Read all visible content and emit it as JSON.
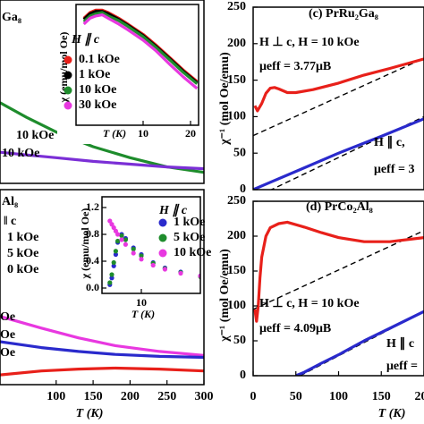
{
  "chart_data": [
    {
      "type": "line",
      "xlim": [
        24,
        300
      ],
      "ylim": [
        0,
        1
      ],
      "annotations": [
        "Ga₈",
        "10 kOe",
        "10 kOe"
      ],
      "series": [
        {
          "color": "#1e8c2c",
          "x": [
            24,
            60,
            100,
            150,
            200,
            250,
            300
          ],
          "values": [
            0.44,
            0.36,
            0.28,
            0.2,
            0.14,
            0.09,
            0.06
          ]
        },
        {
          "color": "#7b2fd6",
          "x": [
            24,
            60,
            100,
            150,
            200,
            250,
            300
          ],
          "values": [
            0.17,
            0.155,
            0.14,
            0.12,
            0.105,
            0.09,
            0.08
          ]
        }
      ]
    },
    {
      "type": "line",
      "xlog": true,
      "xlim": [
        3.75,
        22.5
      ],
      "xticks": [
        10,
        20
      ],
      "ylim": [
        0,
        1.05
      ],
      "xlabel": "T (K)",
      "ylabel": "χ (emu/mol Oe)",
      "legend_title": "H ∥ c",
      "series": [
        {
          "name": "0.1 kOe",
          "color": "#e8201a",
          "x": [
            4.2,
            4.6,
            5,
            5.5,
            6,
            7,
            8,
            10,
            12,
            15,
            18,
            22
          ],
          "values": [
            0.93,
            0.98,
            1.0,
            1.0,
            0.98,
            0.93,
            0.88,
            0.79,
            0.7,
            0.58,
            0.48,
            0.38
          ]
        },
        {
          "name": "1 kOe",
          "color": "#000000",
          "x": [
            4.2,
            4.6,
            5,
            5.5,
            6,
            7,
            8,
            10,
            12,
            15,
            18,
            22
          ],
          "values": [
            0.92,
            0.97,
            0.99,
            0.99,
            0.97,
            0.92,
            0.87,
            0.78,
            0.69,
            0.57,
            0.47,
            0.37
          ]
        },
        {
          "name": "10 kOe",
          "color": "#1e8c2c",
          "x": [
            4.2,
            4.6,
            5,
            5.5,
            6,
            7,
            8,
            10,
            12,
            15,
            18,
            22
          ],
          "values": [
            0.9,
            0.95,
            0.97,
            0.98,
            0.95,
            0.91,
            0.86,
            0.77,
            0.68,
            0.56,
            0.46,
            0.36
          ]
        },
        {
          "name": "30 kOe",
          "color": "#e838e0",
          "x": [
            4.2,
            4.6,
            5,
            5.5,
            6,
            7,
            8,
            10,
            12,
            15,
            18,
            22
          ],
          "values": [
            0.88,
            0.93,
            0.95,
            0.96,
            0.93,
            0.88,
            0.83,
            0.74,
            0.65,
            0.52,
            0.42,
            0.32
          ]
        }
      ]
    },
    {
      "type": "line",
      "xlim": [
        24,
        300
      ],
      "xticks": [
        100,
        150,
        200,
        250,
        300
      ],
      "ylim": [
        0,
        1
      ],
      "xlabel": "T (K)",
      "annotations": [
        "Al₈",
        "‖ c",
        "1 kOe",
        "5 kOe",
        "0 kOe",
        "Oe",
        "Oe",
        "Oe"
      ],
      "series": [
        {
          "color": "#e8201a",
          "x": [
            24,
            80,
            130,
            180,
            240,
            300
          ],
          "values": [
            0.05,
            0.07,
            0.08,
            0.085,
            0.08,
            0.07
          ]
        },
        {
          "color": "#e838e0",
          "x": [
            24,
            80,
            130,
            180,
            240,
            300
          ],
          "values": [
            0.35,
            0.29,
            0.24,
            0.2,
            0.17,
            0.15
          ]
        },
        {
          "color": "#2a2acc",
          "x": [
            24,
            80,
            130,
            180,
            240,
            300
          ],
          "values": [
            0.22,
            0.19,
            0.17,
            0.155,
            0.145,
            0.14
          ]
        }
      ]
    },
    {
      "type": "scatter",
      "xlim": [
        0,
        25
      ],
      "xticks": [
        10
      ],
      "ylim": [
        -0.08,
        1.36
      ],
      "yticks": [
        {
          "value": 0,
          "label": "0.0"
        },
        0.4,
        0.8,
        1.2
      ],
      "xlabel": "T (K)",
      "ylabel": "χ (emu/mol Oe)",
      "legend_title": "H ∥ c",
      "series": [
        {
          "name": "1 kOe",
          "color": "#2a2acc",
          "x": [
            2,
            2.5,
            3,
            3.5,
            4,
            5,
            6,
            8,
            10,
            13,
            16,
            20,
            25
          ],
          "values": [
            0.05,
            0.15,
            0.33,
            0.5,
            0.68,
            0.8,
            0.74,
            0.6,
            0.5,
            0.38,
            0.3,
            0.24,
            0.18
          ]
        },
        {
          "name": "5 kOe",
          "color": "#1e8c2c",
          "x": [
            2,
            2.5,
            3,
            3.5,
            4,
            5,
            6,
            8,
            10,
            13,
            16,
            20,
            25
          ],
          "values": [
            0.08,
            0.2,
            0.38,
            0.55,
            0.7,
            0.78,
            0.72,
            0.58,
            0.48,
            0.37,
            0.29,
            0.23,
            0.17
          ]
        },
        {
          "name": "10 kOe",
          "color": "#e838e0",
          "x": [
            2,
            2.5,
            3,
            3.5,
            4,
            5,
            6,
            8,
            10,
            13,
            16,
            20,
            25
          ],
          "values": [
            1.0,
            0.95,
            0.9,
            0.85,
            0.8,
            0.72,
            0.65,
            0.52,
            0.43,
            0.34,
            0.28,
            0.22,
            0.18
          ]
        }
      ]
    },
    {
      "type": "line",
      "title": "(c) PrRu₂Ga₈",
      "xlim": [
        0,
        200
      ],
      "ylim": [
        0,
        250
      ],
      "yticks": [
        0,
        50,
        100,
        150,
        200,
        250
      ],
      "ylabel": "χ⁻¹ (mol Oe/emu)",
      "annotations": [
        "H ⊥ c, H = 10 kOe",
        "μeff = 3.77μB",
        "H ∥ c,",
        "μeff = 3"
      ],
      "series": [
        {
          "color": "#000000",
          "dash": true,
          "x": [
            0,
            200
          ],
          "values": [
            74,
            180
          ]
        },
        {
          "color": "#000000",
          "dash": true,
          "x": [
            0,
            200
          ],
          "values": [
            -12,
            100
          ]
        },
        {
          "color": "#e8201a",
          "x": [
            2,
            5,
            10,
            15,
            20,
            25,
            30,
            40,
            50,
            70,
            100,
            130,
            160,
            200
          ],
          "values": [
            115,
            108,
            118,
            132,
            139,
            140,
            138,
            133,
            133,
            137,
            146,
            157,
            166,
            179
          ]
        },
        {
          "color": "#2a2acc",
          "x": [
            0,
            20,
            50,
            100,
            150,
            200
          ],
          "values": [
            0,
            10,
            25,
            50,
            73,
            97
          ]
        }
      ]
    },
    {
      "type": "line",
      "title": "(d) PrCo₂Al₈",
      "xlim": [
        0,
        200
      ],
      "xticks": [
        0,
        50,
        100,
        150,
        200
      ],
      "ylim": [
        0,
        250
      ],
      "yticks": [
        0,
        50,
        100,
        150,
        200,
        250
      ],
      "xlabel": "T (K)",
      "ylabel": "χ⁻¹ (mol Oe/emu)",
      "annotations": [
        "H ⊥ c, H = 10 kOe",
        "μeff = 4.09μB",
        "H ∥ c",
        "μeff ="
      ],
      "series": [
        {
          "color": "#000000",
          "dash": true,
          "x": [
            0,
            200
          ],
          "values": [
            95,
            208
          ]
        },
        {
          "color": "#000000",
          "dash": true,
          "x": [
            55,
            200
          ],
          "values": [
            0,
            92
          ]
        },
        {
          "color": "#e8201a",
          "x": [
            2,
            4,
            6,
            8,
            10,
            15,
            20,
            30,
            40,
            60,
            80,
            100,
            130,
            160,
            200
          ],
          "values": [
            95,
            78,
            100,
            140,
            170,
            200,
            212,
            218,
            220,
            213,
            205,
            198,
            192,
            192,
            198
          ]
        },
        {
          "color": "#2a2acc",
          "x": [
            50,
            60,
            80,
            100,
            130,
            160,
            200
          ],
          "values": [
            0,
            5,
            18,
            30,
            50,
            68,
            92
          ]
        }
      ]
    }
  ]
}
